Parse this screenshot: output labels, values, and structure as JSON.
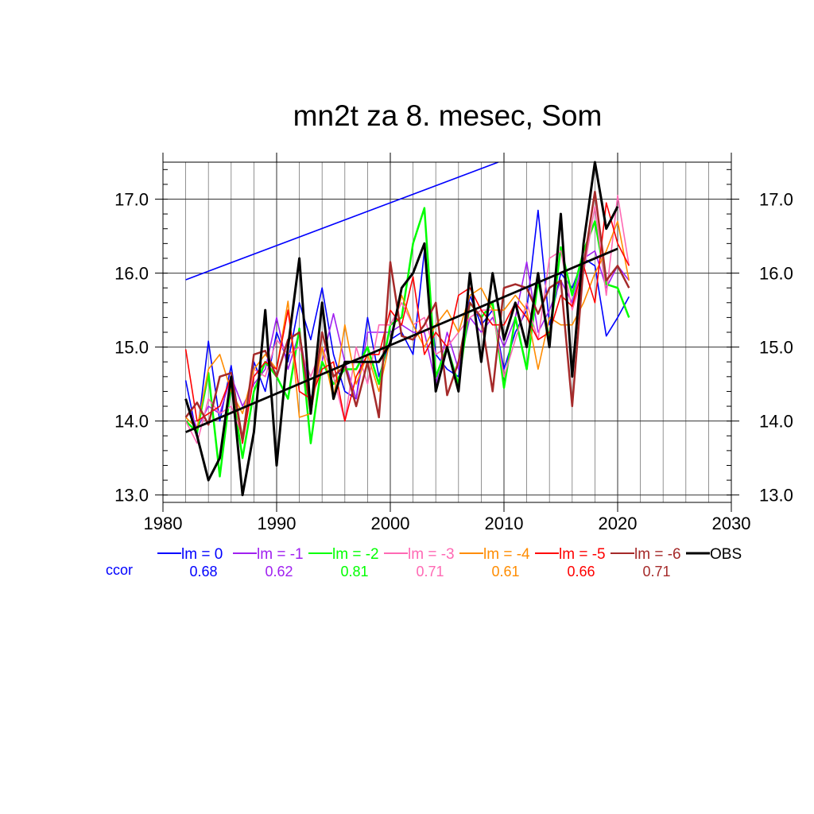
{
  "chart_data": {
    "type": "line",
    "title": "mn2t za 8. mesec, Som",
    "xlim": [
      1980,
      2030
    ],
    "ylim": [
      12.9,
      17.5
    ],
    "x_ticks": [
      "1980",
      "1990",
      "2000",
      "2010",
      "2020",
      "2030"
    ],
    "x_tick_values": [
      1980,
      1990,
      2000,
      2010,
      2020,
      2030
    ],
    "y_ticks": [
      "13.0",
      "14.0",
      "15.0",
      "16.0",
      "17.0"
    ],
    "y_tick_values": [
      13.0,
      14.0,
      15.0,
      16.0,
      17.0
    ],
    "grid": true,
    "x": [
      1982,
      1983,
      1984,
      1985,
      1986,
      1987,
      1988,
      1989,
      1990,
      1991,
      1992,
      1993,
      1994,
      1995,
      1996,
      1997,
      1998,
      1999,
      2000,
      2001,
      2002,
      2003,
      2004,
      2005,
      2006,
      2007,
      2008,
      2009,
      2010,
      2011,
      2012,
      2013,
      2014,
      2015,
      2016,
      2017,
      2018,
      2019,
      2020,
      2021
    ],
    "series": [
      {
        "name": "lm = 0",
        "color": "#0000ff",
        "width": 1.6,
        "values": [
          14.55,
          13.8,
          15.08,
          14.0,
          14.75,
          13.7,
          14.8,
          14.4,
          15.2,
          14.8,
          15.6,
          15.1,
          15.8,
          14.9,
          14.4,
          14.3,
          15.4,
          14.6,
          15.1,
          15.2,
          14.9,
          16.3,
          14.9,
          14.7,
          14.6,
          15.7,
          15.3,
          15.5,
          14.7,
          15.2,
          15.5,
          16.85,
          15.3,
          16.0,
          15.8,
          16.2,
          16.1,
          15.15,
          15.4,
          15.68
        ]
      },
      {
        "name": "lm = -1",
        "color": "#a020f0",
        "width": 1.6,
        "values": [
          14.3,
          13.9,
          14.2,
          14.1,
          14.6,
          14.2,
          14.5,
          14.7,
          15.4,
          14.7,
          15.2,
          14.3,
          14.8,
          15.45,
          14.8,
          14.3,
          15.2,
          15.2,
          15.2,
          15.3,
          15.2,
          15.2,
          14.5,
          15.2,
          14.7,
          15.4,
          15.2,
          15.4,
          15.0,
          15.4,
          16.15,
          15.2,
          15.5,
          15.9,
          15.6,
          16.2,
          16.3,
          15.8,
          16.1,
          15.9
        ]
      },
      {
        "name": "lm = -2",
        "color": "#00ff00",
        "width": 2.5,
        "values": [
          14.0,
          13.85,
          14.65,
          13.25,
          14.5,
          13.5,
          14.4,
          14.8,
          14.6,
          14.3,
          15.25,
          13.7,
          14.8,
          14.5,
          14.7,
          14.7,
          15.0,
          14.5,
          15.3,
          15.4,
          16.4,
          16.88,
          14.6,
          15.0,
          14.5,
          15.6,
          15.4,
          15.6,
          14.45,
          15.4,
          14.7,
          15.9,
          15.1,
          16.35,
          15.7,
          16.3,
          16.7,
          15.85,
          15.8,
          15.4
        ]
      },
      {
        "name": "lm = -3",
        "color": "#ff69b4",
        "width": 1.6,
        "values": [
          14.0,
          13.7,
          14.3,
          14.1,
          14.2,
          13.8,
          14.7,
          14.6,
          15.1,
          14.9,
          15.0,
          14.6,
          15.0,
          14.6,
          14.0,
          15.0,
          14.5,
          15.3,
          15.3,
          15.6,
          15.3,
          15.4,
          14.9,
          15.0,
          15.2,
          15.4,
          15.5,
          15.5,
          14.6,
          15.1,
          15.6,
          15.1,
          16.2,
          16.3,
          15.5,
          16.0,
          16.9,
          15.7,
          17.05,
          16.1
        ]
      },
      {
        "name": "lm = -4",
        "color": "#ff8c00",
        "width": 1.6,
        "values": [
          14.05,
          13.9,
          14.7,
          14.9,
          14.4,
          14.1,
          14.7,
          14.9,
          14.7,
          15.62,
          14.05,
          14.1,
          15.0,
          14.3,
          15.3,
          14.5,
          14.9,
          14.4,
          15.1,
          15.7,
          15.3,
          15.0,
          15.3,
          15.5,
          15.2,
          15.7,
          15.8,
          15.5,
          15.5,
          15.7,
          15.5,
          14.7,
          15.4,
          15.3,
          15.3,
          15.6,
          16.0,
          16.3,
          16.7,
          15.9
        ]
      },
      {
        "name": "lm = -5",
        "color": "#ff0000",
        "width": 1.6,
        "values": [
          14.97,
          14.0,
          14.1,
          14.2,
          14.6,
          13.7,
          14.6,
          14.8,
          14.7,
          15.5,
          14.4,
          14.3,
          14.7,
          14.8,
          14.0,
          14.6,
          14.9,
          14.9,
          15.5,
          15.3,
          15.95,
          14.9,
          15.2,
          15.0,
          15.7,
          15.8,
          15.5,
          15.3,
          15.3,
          15.6,
          15.4,
          15.1,
          15.2,
          15.7,
          15.55,
          16.1,
          15.6,
          16.95,
          16.4,
          16.1
        ]
      },
      {
        "name": "lm = -6",
        "color": "#a52a2a",
        "width": 2.5,
        "values": [
          14.05,
          14.25,
          13.95,
          14.6,
          14.65,
          13.75,
          14.9,
          14.95,
          14.6,
          15.1,
          15.2,
          14.1,
          15.2,
          14.6,
          14.75,
          14.2,
          14.8,
          14.05,
          16.15,
          15.15,
          15.1,
          15.3,
          15.6,
          14.35,
          14.8,
          15.6,
          15.4,
          14.4,
          15.8,
          15.85,
          15.8,
          15.45,
          15.8,
          15.9,
          14.2,
          16.1,
          17.1,
          15.9,
          16.1,
          15.8
        ]
      },
      {
        "name": "OBS",
        "color": "#000000",
        "width": 3,
        "values": [
          14.3,
          13.8,
          13.2,
          13.5,
          14.6,
          13.0,
          13.85,
          15.5,
          13.4,
          15.0,
          16.2,
          14.1,
          15.6,
          14.3,
          14.8,
          14.8,
          14.8,
          14.8,
          15.05,
          15.8,
          16.0,
          16.4,
          14.4,
          15.0,
          14.4,
          16.0,
          14.8,
          16.0,
          15.1,
          15.6,
          15.0,
          16.0,
          15.0,
          16.8,
          14.6,
          16.4,
          17.5,
          16.6,
          16.9,
          null
        ]
      }
    ],
    "trend_lines": [
      {
        "label": "",
        "color": "#0000ff",
        "width": 1.6,
        "x": [
          1982,
          2009.5
        ],
        "y": [
          15.91,
          17.5
        ]
      },
      {
        "label": "",
        "color": "#000000",
        "width": 2.8,
        "x": [
          1982,
          2020
        ],
        "y": [
          13.85,
          16.33
        ]
      }
    ],
    "legend": {
      "placement": "bottom",
      "ccor_label": "ccor",
      "ccor_label_color": "#0000ff",
      "entries": [
        {
          "label": "lm = 0",
          "color": "#0000ff",
          "ccor": "0.68"
        },
        {
          "label": "lm = -1",
          "color": "#a020f0",
          "ccor": "0.62"
        },
        {
          "label": "lm = -2",
          "color": "#00ff00",
          "ccor": "0.81"
        },
        {
          "label": "lm = -3",
          "color": "#ff69b4",
          "ccor": "0.71"
        },
        {
          "label": "lm = -4",
          "color": "#ff8c00",
          "ccor": "0.61"
        },
        {
          "label": "lm = -5",
          "color": "#ff0000",
          "ccor": "0.66"
        },
        {
          "label": "lm = -6",
          "color": "#a52a2a",
          "ccor": "0.71"
        },
        {
          "label": "OBS",
          "color": "#000000",
          "ccor": ""
        }
      ]
    }
  }
}
